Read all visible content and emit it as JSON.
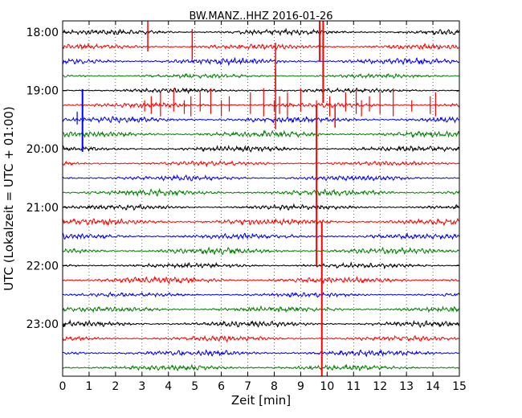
{
  "chart_data": {
    "type": "line",
    "title": "BW.MANZ..HHZ 2016-01-26",
    "xlabel": "Zeit  [min]",
    "ylabel": "UTC (Lokalzeit = UTC + 01:00)",
    "xlim": [
      0,
      15
    ],
    "x_ticks": [
      "0",
      "1",
      "2",
      "3",
      "4",
      "5",
      "6",
      "7",
      "8",
      "9",
      "10",
      "11",
      "12",
      "13",
      "14",
      "15"
    ],
    "y_ticks": [
      "18:00",
      "19:00",
      "20:00",
      "21:00",
      "22:00",
      "23:00"
    ],
    "grid": true,
    "trace_interval_minutes": 15,
    "trace_colors": [
      "#000000",
      "#ff0000",
      "#0000ff",
      "#008000"
    ],
    "traces": [
      {
        "start": "18:00",
        "color": "#000000"
      },
      {
        "start": "18:15",
        "color": "#ff0000"
      },
      {
        "start": "18:30",
        "color": "#0000ff"
      },
      {
        "start": "18:45",
        "color": "#008000"
      },
      {
        "start": "19:00",
        "color": "#000000"
      },
      {
        "start": "19:15",
        "color": "#ff0000"
      },
      {
        "start": "19:30",
        "color": "#0000ff"
      },
      {
        "start": "19:45",
        "color": "#008000"
      },
      {
        "start": "20:00",
        "color": "#000000"
      },
      {
        "start": "20:15",
        "color": "#ff0000"
      },
      {
        "start": "20:30",
        "color": "#0000ff"
      },
      {
        "start": "20:45",
        "color": "#008000"
      },
      {
        "start": "21:00",
        "color": "#000000"
      },
      {
        "start": "21:15",
        "color": "#ff0000"
      },
      {
        "start": "21:30",
        "color": "#0000ff"
      },
      {
        "start": "21:45",
        "color": "#008000"
      },
      {
        "start": "22:00",
        "color": "#000000"
      },
      {
        "start": "22:15",
        "color": "#ff0000"
      },
      {
        "start": "22:30",
        "color": "#0000ff"
      },
      {
        "start": "22:45",
        "color": "#008000"
      },
      {
        "start": "23:00",
        "color": "#000000"
      },
      {
        "start": "23:15",
        "color": "#ff0000"
      },
      {
        "start": "23:30",
        "color": "#0000ff"
      },
      {
        "start": "23:45",
        "color": "#008000"
      }
    ]
  }
}
